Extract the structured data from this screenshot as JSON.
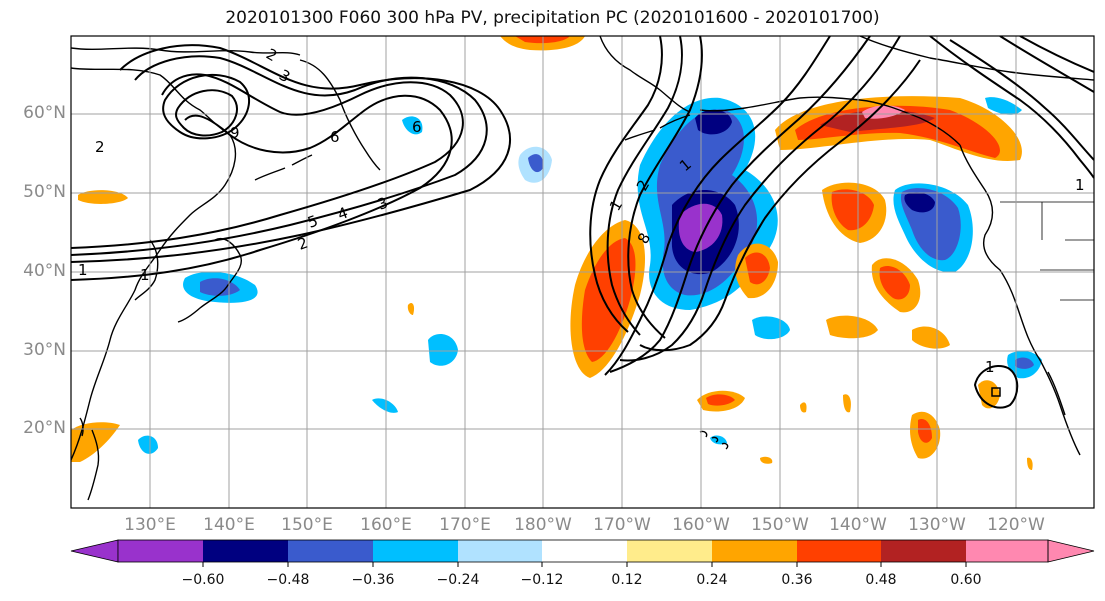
{
  "title": "2020101300 F060 300 hPa PV, precipitation PC (2020101600 - 2020101700)",
  "map": {
    "lat_labels": [
      "60°N",
      "50°N",
      "40°N",
      "30°N",
      "20°N"
    ],
    "lon_labels": [
      "130°E",
      "140°E",
      "150°E",
      "160°E",
      "170°E",
      "180°W",
      "170°W",
      "160°W",
      "150°W",
      "140°W",
      "130°W",
      "120°W"
    ],
    "contour_labels": [
      "3",
      "2",
      "6",
      "2",
      "9",
      "6",
      "3",
      "5",
      "4",
      "2",
      "1",
      "1",
      "1",
      "2",
      "1",
      "8",
      "1",
      "1"
    ],
    "colors": {
      "land_outline": "#000000",
      "grid": "#a0a0a0",
      "contour": "#000000"
    }
  },
  "colorbar": {
    "bins": [
      "#9932CC",
      "#000080",
      "#3A5BCD",
      "#00BFFF",
      "#B0E2FF",
      "#FFFFFF",
      "#FFEC8B",
      "#FFA500",
      "#FF4000",
      "#B22222",
      "#FF88B0"
    ],
    "labels": [
      "−0.60",
      "−0.48",
      "−0.36",
      "−0.24",
      "−0.12",
      "0.12",
      "0.24",
      "0.36",
      "0.48",
      "0.60"
    ]
  }
}
